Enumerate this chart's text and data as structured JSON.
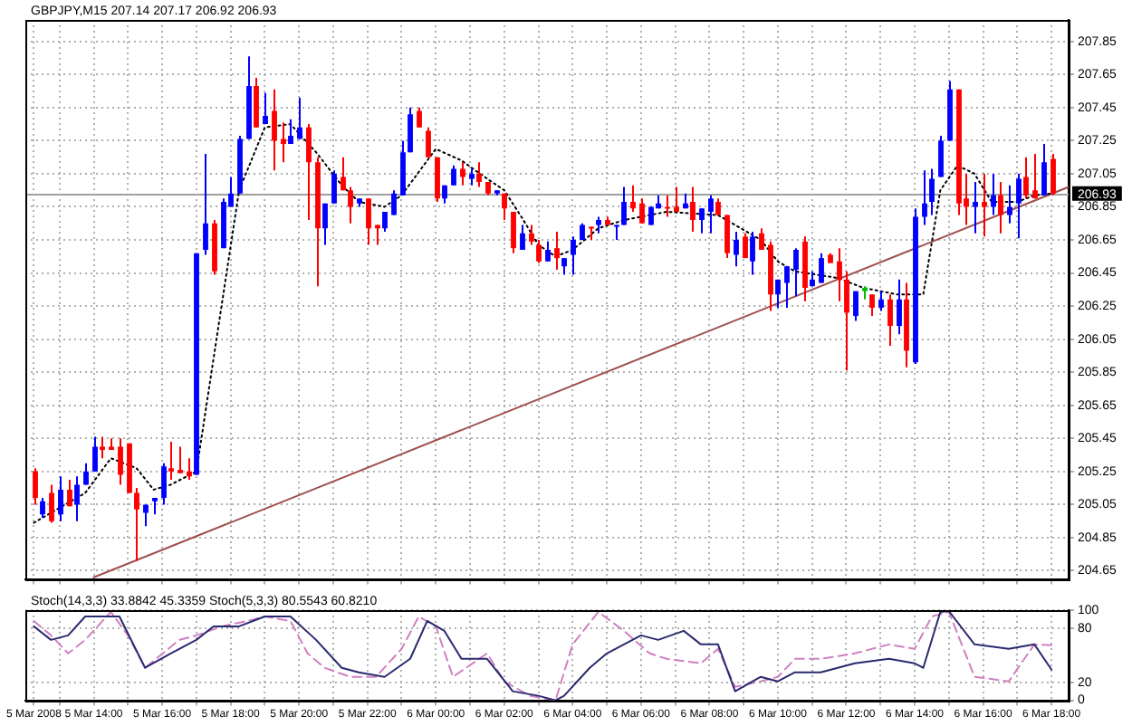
{
  "chart_data": [
    {
      "type": "candlestick",
      "title": "GBPJPY,M15 207.14 207.17 206.92 206.93",
      "x": [
        "2008-03-05T12:15",
        "2008-03-05T12:30",
        "2008-03-05T12:45",
        "2008-03-05T13:00",
        "2008-03-05T13:15",
        "2008-03-05T13:30",
        "2008-03-05T13:45",
        "2008-03-05T14:00",
        "2008-03-05T14:15",
        "2008-03-05T14:30",
        "2008-03-05T14:45",
        "2008-03-05T15:00",
        "2008-03-05T15:15",
        "2008-03-05T15:30",
        "2008-03-05T15:45",
        "2008-03-05T16:00",
        "2008-03-05T16:15",
        "2008-03-05T16:30",
        "2008-03-05T16:45",
        "2008-03-05T17:00",
        "2008-03-05T17:15",
        "2008-03-05T17:30",
        "2008-03-05T17:45",
        "2008-03-05T18:00",
        "2008-03-05T18:15",
        "2008-03-05T18:30",
        "2008-03-05T18:45",
        "2008-03-05T19:00",
        "2008-03-05T19:15",
        "2008-03-05T19:30",
        "2008-03-05T19:45",
        "2008-03-05T20:00",
        "2008-03-05T20:15",
        "2008-03-05T20:30",
        "2008-03-05T20:45",
        "2008-03-05T21:00",
        "2008-03-05T21:15",
        "2008-03-05T21:30",
        "2008-03-05T21:45",
        "2008-03-05T22:00",
        "2008-03-05T22:15",
        "2008-03-05T22:30",
        "2008-03-05T22:45",
        "2008-03-05T23:00",
        "2008-03-05T23:15",
        "2008-03-05T23:30",
        "2008-03-05T23:45",
        "2008-03-06T00:00",
        "2008-03-06T00:15",
        "2008-03-06T00:30",
        "2008-03-06T00:45",
        "2008-03-06T01:00",
        "2008-03-06T01:15",
        "2008-03-06T01:30",
        "2008-03-06T01:45",
        "2008-03-06T02:00",
        "2008-03-06T02:15",
        "2008-03-06T02:30",
        "2008-03-06T02:45",
        "2008-03-06T03:00",
        "2008-03-06T03:15",
        "2008-03-06T03:30",
        "2008-03-06T03:45",
        "2008-03-06T04:00",
        "2008-03-06T04:15",
        "2008-03-06T04:30",
        "2008-03-06T04:45",
        "2008-03-06T05:00",
        "2008-03-06T05:15",
        "2008-03-06T05:30",
        "2008-03-06T05:45",
        "2008-03-06T06:00",
        "2008-03-06T06:15",
        "2008-03-06T06:30",
        "2008-03-06T06:45",
        "2008-03-06T07:00",
        "2008-03-06T07:15",
        "2008-03-06T07:30",
        "2008-03-06T07:45",
        "2008-03-06T08:00",
        "2008-03-06T08:15",
        "2008-03-06T08:30",
        "2008-03-06T08:45",
        "2008-03-06T09:00",
        "2008-03-06T09:15",
        "2008-03-06T09:30",
        "2008-03-06T09:45",
        "2008-03-06T10:00",
        "2008-03-06T10:15",
        "2008-03-06T10:30",
        "2008-03-06T10:45",
        "2008-03-06T11:00",
        "2008-03-06T11:15",
        "2008-03-06T11:30",
        "2008-03-06T11:45",
        "2008-03-06T12:00",
        "2008-03-06T12:15",
        "2008-03-06T12:30",
        "2008-03-06T12:45",
        "2008-03-06T13:00",
        "2008-03-06T13:15",
        "2008-03-06T13:30",
        "2008-03-06T13:45",
        "2008-03-06T14:00",
        "2008-03-06T14:15",
        "2008-03-06T14:30",
        "2008-03-06T14:45",
        "2008-03-06T15:00",
        "2008-03-06T15:15",
        "2008-03-06T15:30",
        "2008-03-06T15:45",
        "2008-03-06T16:00",
        "2008-03-06T16:15",
        "2008-03-06T16:30",
        "2008-03-06T16:45",
        "2008-03-06T17:00",
        "2008-03-06T17:15",
        "2008-03-06T17:30",
        "2008-03-06T17:45",
        "2008-03-06T18:00"
      ],
      "ohlc": [
        [
          205.25,
          205.27,
          205.05,
          205.09
        ],
        [
          204.99,
          205.09,
          204.97,
          205.07
        ],
        [
          205.12,
          205.17,
          204.94,
          204.95
        ],
        [
          204.99,
          205.22,
          204.95,
          205.14
        ],
        [
          205.14,
          205.2,
          205.04,
          205.04
        ],
        [
          205.05,
          205.22,
          204.95,
          205.17
        ],
        [
          205.17,
          205.3,
          205.17,
          205.25
        ],
        [
          205.25,
          205.46,
          205.25,
          205.4
        ],
        [
          205.4,
          205.46,
          205.33,
          205.38
        ],
        [
          205.4,
          205.45,
          205.38,
          205.38
        ],
        [
          205.4,
          205.45,
          205.17,
          205.23
        ],
        [
          205.42,
          205.42,
          205.12,
          205.12
        ],
        [
          205.12,
          205.15,
          204.71,
          205.02
        ],
        [
          205.0,
          205.05,
          204.92,
          205.05
        ],
        [
          205.07,
          205.09,
          204.99,
          205.09
        ],
        [
          205.09,
          205.3,
          205.05,
          205.28
        ],
        [
          205.27,
          205.43,
          205.2,
          205.25
        ],
        [
          205.26,
          205.4,
          205.24,
          205.24
        ],
        [
          205.25,
          205.33,
          205.2,
          205.22
        ],
        [
          205.23,
          206.57,
          205.23,
          206.57
        ],
        [
          206.59,
          207.17,
          206.56,
          206.75
        ],
        [
          206.75,
          206.77,
          206.44,
          206.46
        ],
        [
          206.6,
          206.9,
          206.6,
          206.88
        ],
        [
          206.85,
          207.03,
          206.85,
          206.93
        ],
        [
          206.93,
          207.28,
          206.93,
          207.26
        ],
        [
          207.26,
          207.76,
          207.26,
          207.58
        ],
        [
          207.58,
          207.63,
          207.33,
          207.33
        ],
        [
          207.35,
          207.54,
          207.35,
          207.4
        ],
        [
          207.43,
          207.56,
          207.07,
          207.25
        ],
        [
          207.26,
          207.36,
          207.12,
          207.23
        ],
        [
          207.23,
          207.38,
          207.23,
          207.28
        ],
        [
          207.26,
          207.51,
          207.26,
          207.33
        ],
        [
          207.33,
          207.35,
          206.77,
          207.12
        ],
        [
          207.12,
          207.15,
          206.37,
          206.72
        ],
        [
          206.72,
          206.87,
          206.62,
          206.87
        ],
        [
          206.87,
          207.07,
          206.87,
          207.05
        ],
        [
          207.03,
          207.15,
          206.95,
          206.95
        ],
        [
          206.95,
          206.97,
          206.75,
          206.85
        ],
        [
          206.87,
          206.9,
          206.85,
          206.9
        ],
        [
          206.9,
          206.9,
          206.62,
          206.72
        ],
        [
          206.74,
          206.74,
          206.62,
          206.72
        ],
        [
          206.72,
          206.82,
          206.7,
          206.82
        ],
        [
          206.8,
          206.95,
          206.8,
          206.93
        ],
        [
          206.92,
          207.25,
          206.92,
          207.18
        ],
        [
          207.18,
          207.45,
          207.18,
          207.41
        ],
        [
          207.43,
          207.45,
          207.33,
          207.33
        ],
        [
          207.31,
          207.33,
          207.15,
          207.15
        ],
        [
          207.15,
          207.15,
          206.88,
          206.9
        ],
        [
          206.9,
          206.98,
          206.87,
          206.98
        ],
        [
          206.98,
          207.1,
          206.98,
          207.08
        ],
        [
          207.08,
          207.12,
          206.98,
          207.03
        ],
        [
          207.02,
          207.08,
          206.98,
          207.05
        ],
        [
          207.05,
          207.12,
          206.97,
          207.0
        ],
        [
          207.0,
          207.0,
          206.92,
          206.93
        ],
        [
          206.93,
          206.95,
          206.92,
          206.95
        ],
        [
          206.93,
          206.93,
          206.77,
          206.84
        ],
        [
          206.82,
          206.82,
          206.57,
          206.6
        ],
        [
          206.59,
          206.74,
          206.59,
          206.69
        ],
        [
          206.69,
          206.74,
          206.62,
          206.64
        ],
        [
          206.62,
          206.65,
          206.51,
          206.52
        ],
        [
          206.52,
          206.64,
          206.52,
          206.59
        ],
        [
          206.6,
          206.7,
          206.47,
          206.54
        ],
        [
          206.49,
          206.54,
          206.44,
          206.54
        ],
        [
          206.56,
          206.67,
          206.44,
          206.65
        ],
        [
          206.65,
          206.75,
          206.65,
          206.74
        ],
        [
          206.73,
          206.73,
          206.65,
          206.72
        ],
        [
          206.74,
          206.79,
          206.69,
          206.77
        ],
        [
          206.77,
          206.79,
          206.74,
          206.74
        ],
        [
          206.73,
          206.74,
          206.65,
          206.74
        ],
        [
          206.74,
          206.97,
          206.74,
          206.88
        ],
        [
          206.88,
          206.98,
          206.82,
          206.84
        ],
        [
          206.87,
          206.9,
          206.75,
          206.75
        ],
        [
          206.74,
          206.85,
          206.74,
          206.85
        ],
        [
          206.84,
          206.92,
          206.84,
          206.87
        ],
        [
          206.85,
          206.92,
          206.79,
          206.84
        ],
        [
          206.85,
          206.97,
          206.82,
          206.82
        ],
        [
          206.84,
          206.93,
          206.84,
          206.87
        ],
        [
          206.88,
          206.97,
          206.7,
          206.77
        ],
        [
          206.77,
          206.84,
          206.69,
          206.84
        ],
        [
          206.82,
          206.92,
          206.69,
          206.9
        ],
        [
          206.88,
          206.9,
          206.8,
          206.8
        ],
        [
          206.8,
          206.8,
          206.54,
          206.57
        ],
        [
          206.56,
          206.7,
          206.49,
          206.65
        ],
        [
          206.67,
          206.69,
          206.54,
          206.54
        ],
        [
          206.52,
          206.7,
          206.44,
          206.67
        ],
        [
          206.69,
          206.72,
          206.59,
          206.59
        ],
        [
          206.62,
          206.64,
          206.22,
          206.32
        ],
        [
          206.32,
          206.41,
          206.24,
          206.41
        ],
        [
          206.39,
          206.49,
          206.24,
          206.49
        ],
        [
          206.47,
          206.6,
          206.31,
          206.59
        ],
        [
          206.64,
          206.67,
          206.28,
          206.36
        ],
        [
          206.37,
          206.46,
          206.37,
          206.41
        ],
        [
          206.39,
          206.57,
          206.39,
          206.54
        ],
        [
          206.56,
          206.57,
          206.51,
          206.51
        ],
        [
          206.52,
          206.6,
          206.28,
          206.41
        ],
        [
          206.41,
          206.46,
          205.86,
          206.21
        ],
        [
          206.19,
          206.34,
          206.16,
          206.34
        ],
        [
          206.36,
          206.37,
          206.29,
          206.34
        ],
        [
          206.32,
          206.32,
          206.19,
          206.24
        ],
        [
          206.24,
          206.34,
          206.22,
          206.29
        ],
        [
          206.29,
          206.32,
          206.01,
          206.13
        ],
        [
          206.13,
          206.41,
          206.08,
          206.29
        ],
        [
          206.29,
          206.39,
          205.88,
          205.98
        ],
        [
          205.91,
          206.84,
          205.9,
          206.79
        ],
        [
          206.79,
          207.07,
          206.74,
          206.87
        ],
        [
          206.88,
          207.08,
          206.8,
          207.02
        ],
        [
          207.03,
          207.28,
          207.03,
          207.25
        ],
        [
          207.25,
          207.61,
          207.25,
          207.56
        ],
        [
          207.56,
          207.56,
          206.8,
          206.87
        ],
        [
          206.9,
          207.05,
          206.74,
          206.85
        ],
        [
          206.85,
          207.0,
          206.69,
          206.88
        ],
        [
          206.88,
          207.05,
          206.67,
          206.85
        ],
        [
          206.85,
          207.05,
          206.8,
          206.92
        ],
        [
          206.92,
          207.0,
          206.69,
          206.8
        ],
        [
          206.8,
          206.98,
          206.75,
          206.85
        ],
        [
          206.87,
          207.05,
          206.66,
          207.02
        ],
        [
          207.03,
          207.15,
          206.9,
          206.92
        ],
        [
          206.95,
          207.17,
          206.9,
          206.9
        ],
        [
          206.92,
          207.23,
          206.92,
          207.12
        ],
        [
          207.14,
          207.17,
          206.92,
          206.93
        ]
      ],
      "colors": [
        "#ff0000",
        "#0000ff",
        "#ff0000",
        "#0000ff",
        "#ff0000",
        "#0000ff",
        "#0000ff",
        "#0000ff",
        "#ff0000",
        "#ff0000",
        "#ff0000",
        "#ff0000",
        "#ff0000",
        "#0000ff",
        "#0000ff",
        "#0000ff",
        "#ff0000",
        "#ff0000",
        "#ff0000",
        "#0000ff",
        "#0000ff",
        "#ff0000",
        "#0000ff",
        "#0000ff",
        "#0000ff",
        "#0000ff",
        "#ff0000",
        "#0000ff",
        "#ff0000",
        "#ff0000",
        "#0000ff",
        "#0000ff",
        "#ff0000",
        "#ff0000",
        "#0000ff",
        "#0000ff",
        "#ff0000",
        "#ff0000",
        "#0000ff",
        "#ff0000",
        "#ff0000",
        "#0000ff",
        "#0000ff",
        "#0000ff",
        "#0000ff",
        "#ff0000",
        "#ff0000",
        "#ff0000",
        "#0000ff",
        "#0000ff",
        "#ff0000",
        "#0000ff",
        "#ff0000",
        "#ff0000",
        "#0000ff",
        "#ff0000",
        "#ff0000",
        "#0000ff",
        "#ff0000",
        "#ff0000",
        "#0000ff",
        "#ff0000",
        "#0000ff",
        "#0000ff",
        "#0000ff",
        "#ff0000",
        "#0000ff",
        "#ff0000",
        "#0000ff",
        "#0000ff",
        "#ff0000",
        "#ff0000",
        "#0000ff",
        "#0000ff",
        "#ff0000",
        "#ff0000",
        "#0000ff",
        "#ff0000",
        "#0000ff",
        "#0000ff",
        "#ff0000",
        "#ff0000",
        "#0000ff",
        "#ff0000",
        "#0000ff",
        "#ff0000",
        "#ff0000",
        "#0000ff",
        "#0000ff",
        "#0000ff",
        "#ff0000",
        "#0000ff",
        "#0000ff",
        "#ff0000",
        "#ff0000",
        "#ff0000",
        "#0000ff",
        "#00c000",
        "#ff0000",
        "#0000ff",
        "#ff0000",
        "#0000ff",
        "#ff0000",
        "#0000ff",
        "#0000ff",
        "#0000ff",
        "#0000ff",
        "#0000ff",
        "#ff0000",
        "#ff0000",
        "#0000ff",
        "#ff0000",
        "#0000ff",
        "#ff0000",
        "#0000ff",
        "#0000ff",
        "#ff0000",
        "#ff0000",
        "#0000ff",
        "#ff0000"
      ],
      "series": [
        {
          "type": "line",
          "color": "#000000",
          "line_style": "dotted",
          "x": [
            "2008-03-05T12:15",
            "2008-03-05T13:45",
            "2008-03-05T14:30",
            "2008-03-05T15:15",
            "2008-03-05T15:45",
            "2008-03-05T16:15",
            "2008-03-05T17:00",
            "2008-03-05T18:15",
            "2008-03-05T19:00",
            "2008-03-05T19:45",
            "2008-03-05T20:30",
            "2008-03-05T21:15",
            "2008-03-05T21:45",
            "2008-03-05T22:30",
            "2008-03-05T23:00",
            "2008-03-06T00:00",
            "2008-03-06T00:45",
            "2008-03-06T01:30",
            "2008-03-06T02:00",
            "2008-03-06T02:30",
            "2008-03-06T03:00",
            "2008-03-06T03:30",
            "2008-03-06T04:00",
            "2008-03-06T04:45",
            "2008-03-06T05:30",
            "2008-03-06T06:45",
            "2008-03-06T08:15",
            "2008-03-06T08:45",
            "2008-03-06T09:30",
            "2008-03-06T10:00",
            "2008-03-06T10:30",
            "2008-03-06T11:45",
            "2008-03-06T12:30",
            "2008-03-06T13:30",
            "2008-03-06T14:15",
            "2008-03-06T14:45",
            "2008-03-06T15:15",
            "2008-03-06T15:45",
            "2008-03-06T16:15",
            "2008-03-06T17:00",
            "2008-03-06T17:30",
            "2008-03-06T18:00"
          ],
          "values": [
            204.94,
            205.12,
            205.33,
            205.27,
            205.14,
            205.17,
            205.25,
            206.95,
            207.33,
            207.35,
            207.18,
            206.98,
            206.88,
            206.85,
            206.92,
            207.2,
            207.13,
            207.02,
            206.95,
            206.79,
            206.62,
            206.55,
            206.59,
            206.72,
            206.77,
            206.82,
            206.8,
            206.74,
            206.65,
            206.52,
            206.46,
            206.42,
            206.36,
            206.32,
            206.32,
            206.95,
            207.1,
            207.05,
            206.88,
            206.88,
            206.92,
            206.93
          ]
        },
        {
          "type": "line",
          "color": "#a05050",
          "line_style": "solid",
          "x": [
            "2008-03-05T14:00",
            "2008-03-06T18:30"
          ],
          "values": [
            204.61,
            206.97
          ]
        }
      ],
      "xlim": [
        "2008-03-05T12:00",
        "2008-03-06T18:30"
      ],
      "xticks": [
        {
          "value": "2008-03-05T12:15",
          "label": null
        },
        {
          "value": "2008-03-05T13:00",
          "label": null
        },
        {
          "value": "2008-03-05T14:00",
          "label": null
        },
        {
          "value": "2008-03-05T15:00",
          "label": null
        },
        {
          "value": "2008-03-05T16:00",
          "label": null
        },
        {
          "value": "2008-03-05T17:00",
          "label": null
        },
        {
          "value": "2008-03-05T18:00",
          "label": null
        },
        {
          "value": "2008-03-05T19:00",
          "label": null
        },
        {
          "value": "2008-03-05T20:00",
          "label": null
        },
        {
          "value": "2008-03-05T21:00",
          "label": null
        },
        {
          "value": "2008-03-05T22:00",
          "label": null
        },
        {
          "value": "2008-03-05T23:00",
          "label": null
        },
        {
          "value": "2008-03-06T00:00",
          "label": null
        },
        {
          "value": "2008-03-06T01:00",
          "label": null
        },
        {
          "value": "2008-03-06T02:00",
          "label": null
        },
        {
          "value": "2008-03-06T03:00",
          "label": null
        },
        {
          "value": "2008-03-06T04:00",
          "label": null
        },
        {
          "value": "2008-03-06T05:00",
          "label": null
        },
        {
          "value": "2008-03-06T06:00",
          "label": null
        },
        {
          "value": "2008-03-06T07:00",
          "label": null
        },
        {
          "value": "2008-03-06T08:00",
          "label": null
        },
        {
          "value": "2008-03-06T09:00",
          "label": null
        },
        {
          "value": "2008-03-06T10:00",
          "label": null
        },
        {
          "value": "2008-03-06T11:00",
          "label": null
        },
        {
          "value": "2008-03-06T12:00",
          "label": null
        },
        {
          "value": "2008-03-06T13:00",
          "label": null
        },
        {
          "value": "2008-03-06T14:00",
          "label": null
        },
        {
          "value": "2008-03-06T15:00",
          "label": null
        },
        {
          "value": "2008-03-06T16:00",
          "label": null
        },
        {
          "value": "2008-03-06T17:00",
          "label": null
        },
        {
          "value": "2008-03-06T18:00",
          "label": null
        }
      ],
      "ylim": [
        204.6,
        207.98
      ],
      "yticks": [
        204.65,
        204.85,
        205.05,
        205.25,
        205.45,
        205.65,
        205.85,
        206.05,
        206.25,
        206.45,
        206.65,
        206.85,
        207.05,
        207.25,
        207.45,
        207.65,
        207.85
      ],
      "ref_lines": [
        {
          "axis": "y",
          "value": 206.93,
          "label": "206.93",
          "color": "#a0a0a0"
        }
      ],
      "grid": true,
      "tick_labels": "y",
      "marker": "none"
    },
    {
      "type": "line",
      "title": "Stoch(14,3,3) 33.8842 45.3359 Stoch(5,3,3) 80.5543 60.8210",
      "series": [
        {
          "color": "#2a2a70",
          "line_style": "solid",
          "x": [
            "2008-03-05T12:15",
            "2008-03-05T12:45",
            "2008-03-05T13:15",
            "2008-03-05T13:45",
            "2008-03-05T14:45",
            "2008-03-05T15:30",
            "2008-03-05T16:15",
            "2008-03-05T17:00",
            "2008-03-05T17:30",
            "2008-03-05T18:15",
            "2008-03-05T19:00",
            "2008-03-05T19:45",
            "2008-03-05T20:30",
            "2008-03-05T21:15",
            "2008-03-05T21:45",
            "2008-03-05T22:30",
            "2008-03-05T23:15",
            "2008-03-05T23:45",
            "2008-03-06T00:15",
            "2008-03-06T00:45",
            "2008-03-06T01:30",
            "2008-03-06T02:15",
            "2008-03-06T03:00",
            "2008-03-06T03:30",
            "2008-03-06T03:45",
            "2008-03-06T04:30",
            "2008-03-06T05:00",
            "2008-03-06T06:00",
            "2008-03-06T06:30",
            "2008-03-06T07:15",
            "2008-03-06T07:45",
            "2008-03-06T08:15",
            "2008-03-06T08:45",
            "2008-03-06T09:30",
            "2008-03-06T10:00",
            "2008-03-06T10:30",
            "2008-03-06T11:15",
            "2008-03-06T12:15",
            "2008-03-06T13:15",
            "2008-03-06T14:00",
            "2008-03-06T14:15",
            "2008-03-06T14:45",
            "2008-03-06T15:00",
            "2008-03-06T15:45",
            "2008-03-06T16:45",
            "2008-03-06T17:30",
            "2008-03-06T18:00"
          ],
          "values": [
            82,
            67,
            72,
            93,
            93,
            36,
            52,
            67,
            82,
            82,
            93,
            93,
            67,
            36,
            31,
            26,
            46,
            88,
            77,
            46,
            46,
            10,
            5,
            0,
            5,
            36,
            52,
            72,
            67,
            77,
            62,
            62,
            10,
            26,
            21,
            31,
            31,
            41,
            46,
            41,
            36,
            98,
            99,
            62,
            57,
            62,
            34
          ]
        },
        {
          "color": "#d080c0",
          "line_style": "dashed",
          "x": [
            "2008-03-05T12:15",
            "2008-03-05T12:45",
            "2008-03-05T13:15",
            "2008-03-05T13:45",
            "2008-03-05T14:30",
            "2008-03-05T15:00",
            "2008-03-05T15:30",
            "2008-03-05T16:30",
            "2008-03-05T17:00",
            "2008-03-05T17:45",
            "2008-03-05T18:30",
            "2008-03-05T19:00",
            "2008-03-05T19:45",
            "2008-03-05T20:15",
            "2008-03-05T20:45",
            "2008-03-05T21:30",
            "2008-03-05T22:15",
            "2008-03-05T23:00",
            "2008-03-05T23:30",
            "2008-03-06T00:00",
            "2008-03-06T00:30",
            "2008-03-06T01:30",
            "2008-03-06T02:00",
            "2008-03-06T02:45",
            "2008-03-06T03:30",
            "2008-03-06T04:00",
            "2008-03-06T04:45",
            "2008-03-06T05:30",
            "2008-03-06T06:15",
            "2008-03-06T06:45",
            "2008-03-06T07:45",
            "2008-03-06T08:15",
            "2008-03-06T08:45",
            "2008-03-06T09:30",
            "2008-03-06T10:00",
            "2008-03-06T10:30",
            "2008-03-06T11:15",
            "2008-03-06T12:15",
            "2008-03-06T13:15",
            "2008-03-06T14:00",
            "2008-03-06T14:30",
            "2008-03-06T15:00",
            "2008-03-06T15:45",
            "2008-03-06T16:45",
            "2008-03-06T17:30",
            "2008-03-06T18:00"
          ],
          "values": [
            88,
            72,
            52,
            67,
            98,
            72,
            36,
            67,
            72,
            82,
            88,
            93,
            88,
            52,
            36,
            26,
            26,
            57,
            93,
            82,
            26,
            52,
            21,
            5,
            0,
            62,
            98,
            77,
            52,
            46,
            41,
            57,
            15,
            21,
            26,
            46,
            46,
            52,
            62,
            57,
            93,
            98,
            26,
            21,
            62,
            61
          ]
        }
      ],
      "xlim": [
        "2008-03-05T12:00",
        "2008-03-06T18:30"
      ],
      "xticks": [
        {
          "value": "2008-03-05T12:15",
          "label": "5 Mar 2008"
        },
        {
          "value": "2008-03-05T13:00",
          "label": null
        },
        {
          "value": "2008-03-05T14:00",
          "label": "5 Mar 14:00"
        },
        {
          "value": "2008-03-05T15:00",
          "label": null
        },
        {
          "value": "2008-03-05T16:00",
          "label": "5 Mar 16:00"
        },
        {
          "value": "2008-03-05T17:00",
          "label": null
        },
        {
          "value": "2008-03-05T18:00",
          "label": "5 Mar 18:00"
        },
        {
          "value": "2008-03-05T19:00",
          "label": null
        },
        {
          "value": "2008-03-05T20:00",
          "label": "5 Mar 20:00"
        },
        {
          "value": "2008-03-05T21:00",
          "label": null
        },
        {
          "value": "2008-03-05T22:00",
          "label": "5 Mar 22:00"
        },
        {
          "value": "2008-03-05T23:00",
          "label": null
        },
        {
          "value": "2008-03-06T00:00",
          "label": "6 Mar 00:00"
        },
        {
          "value": "2008-03-06T01:00",
          "label": null
        },
        {
          "value": "2008-03-06T02:00",
          "label": "6 Mar 02:00"
        },
        {
          "value": "2008-03-06T03:00",
          "label": null
        },
        {
          "value": "2008-03-06T04:00",
          "label": "6 Mar 04:00"
        },
        {
          "value": "2008-03-06T05:00",
          "label": null
        },
        {
          "value": "2008-03-06T06:00",
          "label": "6 Mar 06:00"
        },
        {
          "value": "2008-03-06T07:00",
          "label": null
        },
        {
          "value": "2008-03-06T08:00",
          "label": "6 Mar 08:00"
        },
        {
          "value": "2008-03-06T09:00",
          "label": null
        },
        {
          "value": "2008-03-06T10:00",
          "label": "6 Mar 10:00"
        },
        {
          "value": "2008-03-06T11:00",
          "label": null
        },
        {
          "value": "2008-03-06T12:00",
          "label": "6 Mar 12:00"
        },
        {
          "value": "2008-03-06T13:00",
          "label": null
        },
        {
          "value": "2008-03-06T14:00",
          "label": "6 Mar 14:00"
        },
        {
          "value": "2008-03-06T15:00",
          "label": null
        },
        {
          "value": "2008-03-06T16:00",
          "label": "6 Mar 16:00"
        },
        {
          "value": "2008-03-06T17:00",
          "label": null
        },
        {
          "value": "2008-03-06T18:00",
          "label": "6 Mar 18:00"
        }
      ],
      "ylim": [
        0,
        100
      ],
      "yticks": [
        0,
        20,
        80,
        100
      ],
      "grid": true,
      "marker": "none"
    }
  ]
}
